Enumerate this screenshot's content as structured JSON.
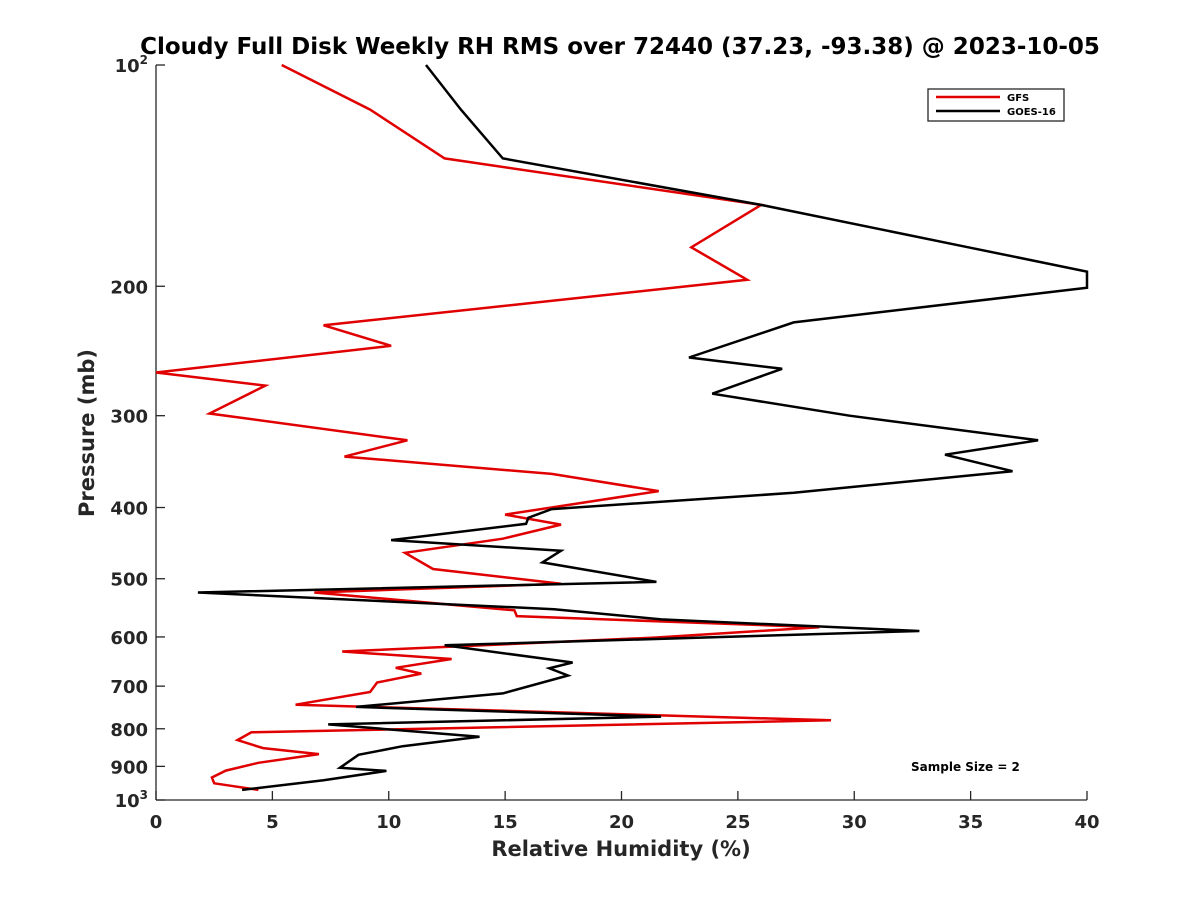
{
  "chart_data": {
    "type": "line",
    "title": "Cloudy Full Disk Weekly RH RMS over 72440 (37.23, -93.38) @ 2023-10-05",
    "xlabel": "Relative Humidity (%)",
    "ylabel": "Pressure (mb)",
    "xlim": [
      0,
      40
    ],
    "ylim": [
      100,
      1000
    ],
    "y_scale": "log",
    "y_reversed": true,
    "xticks": [
      0,
      5,
      10,
      15,
      20,
      25,
      30,
      35,
      40
    ],
    "yticks": [
      {
        "value": 100,
        "label": "10",
        "sup": "2"
      },
      {
        "value": 200,
        "label": "200",
        "sup": ""
      },
      {
        "value": 300,
        "label": "300",
        "sup": ""
      },
      {
        "value": 400,
        "label": "400",
        "sup": ""
      },
      {
        "value": 500,
        "label": "500",
        "sup": ""
      },
      {
        "value": 600,
        "label": "600",
        "sup": ""
      },
      {
        "value": 700,
        "label": "700",
        "sup": ""
      },
      {
        "value": 800,
        "label": "800",
        "sup": ""
      },
      {
        "value": 900,
        "label": "900",
        "sup": ""
      },
      {
        "value": 1000,
        "label": "10",
        "sup": "3"
      }
    ],
    "grid": false,
    "legend_position": "top-right",
    "annotation": "Sample Size = 2",
    "series": [
      {
        "name": "GFS",
        "color": "#e00000",
        "points": [
          [
            5.4,
            100
          ],
          [
            9.2,
            115
          ],
          [
            12.4,
            134
          ],
          [
            26.0,
            155
          ],
          [
            23.0,
            177
          ],
          [
            25.4,
            196
          ],
          [
            7.2,
            226
          ],
          [
            10.1,
            241
          ],
          [
            0.0,
            262
          ],
          [
            4.7,
            273
          ],
          [
            2.3,
            298
          ],
          [
            10.8,
            324
          ],
          [
            8.1,
            341
          ],
          [
            17.0,
            360
          ],
          [
            21.6,
            380
          ],
          [
            15.0,
            409
          ],
          [
            17.4,
            422
          ],
          [
            14.9,
            441
          ],
          [
            10.7,
            461
          ],
          [
            11.9,
            485
          ],
          [
            17.4,
            508
          ],
          [
            6.8,
            522
          ],
          [
            15.4,
            552
          ],
          [
            15.5,
            562
          ],
          [
            28.5,
            582
          ],
          [
            21.5,
            601
          ],
          [
            8.0,
            628
          ],
          [
            12.7,
            643
          ],
          [
            10.3,
            661
          ],
          [
            11.4,
            673
          ],
          [
            9.5,
            692
          ],
          [
            9.2,
            713
          ],
          [
            6.0,
            742
          ],
          [
            29.0,
            779
          ],
          [
            4.1,
            809
          ],
          [
            3.5,
            829
          ],
          [
            4.6,
            850
          ],
          [
            7.0,
            866
          ],
          [
            4.4,
            890
          ],
          [
            3.0,
            912
          ],
          [
            2.4,
            932
          ],
          [
            2.5,
            949
          ],
          [
            4.4,
            969
          ]
        ]
      },
      {
        "name": "GOES-16",
        "color": "#000000",
        "points": [
          [
            11.6,
            100
          ],
          [
            13.1,
            115
          ],
          [
            14.9,
            134
          ],
          [
            26.0,
            155
          ],
          [
            34.9,
            177
          ],
          [
            40.0,
            191
          ],
          [
            40.0,
            201
          ],
          [
            27.4,
            224
          ],
          [
            22.9,
            250
          ],
          [
            26.9,
            259
          ],
          [
            23.9,
            280
          ],
          [
            29.8,
            300
          ],
          [
            37.9,
            324
          ],
          [
            33.9,
            339
          ],
          [
            36.8,
            357
          ],
          [
            27.4,
            382
          ],
          [
            17.0,
            402
          ],
          [
            16.0,
            413
          ],
          [
            15.9,
            421
          ],
          [
            10.1,
            443
          ],
          [
            17.4,
            458
          ],
          [
            16.6,
            475
          ],
          [
            21.5,
            505
          ],
          [
            1.8,
            522
          ],
          [
            17.1,
            550
          ],
          [
            21.7,
            568
          ],
          [
            32.8,
            589
          ],
          [
            12.4,
            616
          ],
          [
            17.9,
            650
          ],
          [
            16.9,
            662
          ],
          [
            17.7,
            677
          ],
          [
            14.9,
            716
          ],
          [
            8.6,
            747
          ],
          [
            21.7,
            770
          ],
          [
            7.4,
            789
          ],
          [
            13.9,
            820
          ],
          [
            10.6,
            845
          ],
          [
            8.7,
            868
          ],
          [
            7.9,
            904
          ],
          [
            9.9,
            913
          ],
          [
            7.2,
            940
          ],
          [
            3.7,
            969
          ]
        ]
      }
    ]
  }
}
